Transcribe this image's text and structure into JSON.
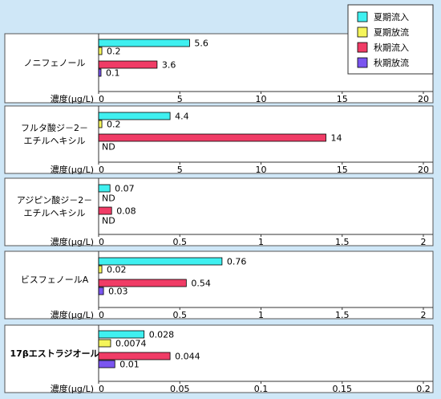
{
  "chart_data": [
    {
      "type": "bar",
      "orientation": "horizontal",
      "title": "ノニフェノール",
      "axis_label": "濃度(μg/L)",
      "xlim": [
        0,
        20
      ],
      "ticks": [
        "0",
        "5",
        "10",
        "15",
        "20"
      ],
      "tick_values": [
        0,
        5,
        10,
        15,
        20
      ],
      "bars": [
        {
          "series": "夏期流入",
          "value": 5.6,
          "label": "5.6"
        },
        {
          "series": "夏期放流",
          "value": 0.2,
          "label": "0.2"
        },
        {
          "series": "秋期流入",
          "value": 3.6,
          "label": "3.6"
        },
        {
          "series": "秋期放流",
          "value": 0.1,
          "label": "0.1"
        }
      ]
    },
    {
      "type": "bar",
      "orientation": "horizontal",
      "title": "フルタ酸ジ-2-エチルヘキシル",
      "title_lines": [
        "フルタ酸ジ－2－",
        "エチルヘキシル"
      ],
      "axis_label": "濃度(μg/L)",
      "xlim": [
        0,
        20
      ],
      "ticks": [
        "0",
        "5",
        "10",
        "15",
        "20"
      ],
      "tick_values": [
        0,
        5,
        10,
        15,
        20
      ],
      "bars": [
        {
          "series": "夏期流入",
          "value": 4.4,
          "label": "4.4"
        },
        {
          "series": "夏期放流",
          "value": 0.2,
          "label": "0.2"
        },
        {
          "series": "秋期流入",
          "value": 14,
          "label": "14"
        },
        {
          "series": "秋期放流",
          "value": null,
          "label": "ND"
        }
      ]
    },
    {
      "type": "bar",
      "orientation": "horizontal",
      "title": "アジピン酸ジ-2-エチルヘキシル",
      "title_lines": [
        "アジピン酸ジ－2－",
        "エチルヘキシル"
      ],
      "axis_label": "濃度(μg/L)",
      "xlim": [
        0,
        2
      ],
      "ticks": [
        "0",
        "0.5",
        "1",
        "1.5",
        "2"
      ],
      "tick_values": [
        0,
        0.5,
        1,
        1.5,
        2
      ],
      "bars": [
        {
          "series": "夏期流入",
          "value": 0.07,
          "label": "0.07"
        },
        {
          "series": "夏期放流",
          "value": null,
          "label": "ND"
        },
        {
          "series": "秋期流入",
          "value": 0.08,
          "label": "0.08"
        },
        {
          "series": "秋期放流",
          "value": null,
          "label": "ND"
        }
      ]
    },
    {
      "type": "bar",
      "orientation": "horizontal",
      "title": "ビスフェノールA",
      "axis_label": "濃度(μg/L)",
      "xlim": [
        0,
        2
      ],
      "ticks": [
        "0",
        "0.5",
        "1",
        "1.5",
        "2"
      ],
      "tick_values": [
        0,
        0.5,
        1,
        1.5,
        2
      ],
      "bars": [
        {
          "series": "夏期流入",
          "value": 0.76,
          "label": "0.76"
        },
        {
          "series": "夏期放流",
          "value": 0.02,
          "label": "0.02"
        },
        {
          "series": "秋期流入",
          "value": 0.54,
          "label": "0.54"
        },
        {
          "series": "秋期放流",
          "value": 0.03,
          "label": "0.03"
        }
      ]
    },
    {
      "type": "bar",
      "orientation": "horizontal",
      "title": "17βエストラジオール",
      "axis_label": "濃度(μg/L)",
      "xlim": [
        0,
        0.2
      ],
      "ticks": [
        "0",
        "0.05",
        "0.1",
        "0.15",
        "0.2"
      ],
      "tick_values": [
        0,
        0.05,
        0.1,
        0.15,
        0.2
      ],
      "bars": [
        {
          "series": "夏期流入",
          "value": 0.028,
          "label": "0.028"
        },
        {
          "series": "夏期放流",
          "value": 0.0074,
          "label": "0.0074"
        },
        {
          "series": "秋期流入",
          "value": 0.044,
          "label": "0.044"
        },
        {
          "series": "秋期放流",
          "value": 0.01,
          "label": "0.01"
        }
      ]
    }
  ],
  "legend": {
    "placement": "top-right",
    "items": [
      {
        "name": "夏期流入",
        "color": "#3ff0f0"
      },
      {
        "name": "夏期放流",
        "color": "#f5f55a"
      },
      {
        "name": "秋期流入",
        "color": "#f03c66"
      },
      {
        "name": "秋期放流",
        "color": "#7a55f0"
      }
    ]
  },
  "colors": {
    "background": "#cfe7f7",
    "panel": "#ffffff",
    "bar_stroke": "#000000"
  }
}
